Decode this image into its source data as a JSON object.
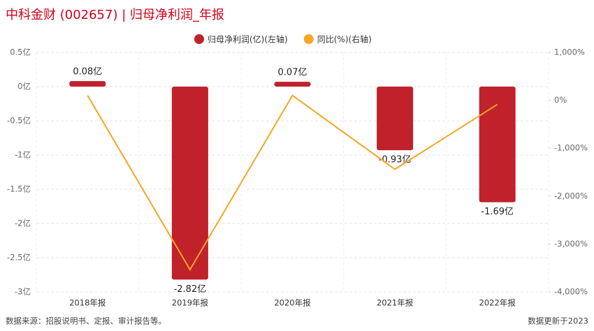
{
  "chart_data": {
    "type": "bar",
    "title": "中科金财 (002657) | 归母净利润_年报",
    "categories": [
      "2018年报",
      "2019年报",
      "2020年报",
      "2021年报",
      "2022年报"
    ],
    "series": [
      {
        "name": "归母净利润(亿)(左轴)",
        "type": "bar",
        "color": "#c0212b",
        "values": [
          0.08,
          -2.82,
          0.07,
          -0.93,
          -1.69
        ],
        "value_labels": [
          "0.08亿",
          "-2.82亿",
          "0.07亿",
          "-0.93亿",
          "-1.69亿"
        ]
      },
      {
        "name": "同比(%)(右轴)",
        "type": "line",
        "axis": "y2",
        "color": "#f5a623",
        "values": [
          100,
          -3535,
          100,
          -1440,
          -87
        ]
      }
    ],
    "ylim": [
      -3,
      0.5
    ],
    "yticks": [
      {
        "value": 0.5,
        "label": "0.5亿"
      },
      {
        "value": 0,
        "label": "0亿"
      },
      {
        "value": -0.5,
        "label": "-0.5亿"
      },
      {
        "value": -1,
        "label": "-1亿"
      },
      {
        "value": -1.5,
        "label": "-1.5亿"
      },
      {
        "value": -2,
        "label": "-2亿"
      },
      {
        "value": -2.5,
        "label": "-2.5亿"
      },
      {
        "value": -3,
        "label": "-3亿"
      }
    ],
    "y2lim": [
      -4000,
      1000
    ],
    "y2ticks": [
      {
        "value": 1000,
        "label": "1,000%"
      },
      {
        "value": 0,
        "label": "0%"
      },
      {
        "value": -1000,
        "label": "-1,000%"
      },
      {
        "value": -2000,
        "label": "-2,000%"
      },
      {
        "value": -3000,
        "label": "-3,000%"
      },
      {
        "value": -4000,
        "label": "-4,000%"
      }
    ],
    "grid": true,
    "legend": "top",
    "source": "数据来源：招股说明书、定报、审计报告等。",
    "updated": "数据更新于2023"
  }
}
